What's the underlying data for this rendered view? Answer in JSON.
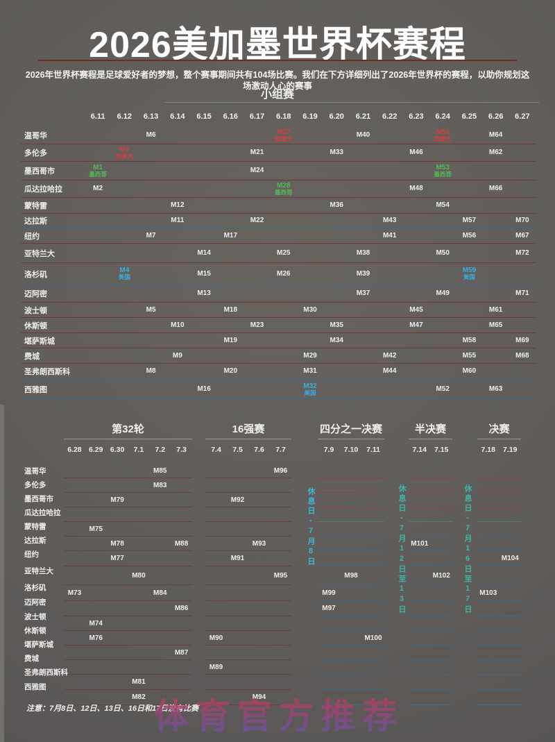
{
  "page": {
    "title": "2026美加墨世界杯赛程",
    "subtitle": "2026年世界杯赛程是足球爱好者的梦想，整个赛事期间共有104场比赛。我们在下方详细列出了2026年世界杯的赛程，以助你规划这场激动人心的赛事",
    "note": "注意：7月8日、12日、13日、16日和17日没有比赛",
    "watermark": "体育官方推荐"
  },
  "colors": {
    "canada_red": "#d63d3d",
    "mexico_green": "#57b757",
    "usa_cyan": "#3aaedd",
    "rest_day_cyan": "#3cb9d9",
    "rest_day_teal": "#3db5a8",
    "row_line_maroon": "#6f3832",
    "row_line_blue": "#41688a",
    "row_line_red": "#8f4340",
    "row_line_green": "#52805a",
    "watermark_red": "#c33b50",
    "watermark_purple": "#6f51a0",
    "title_divider": "#6e2d24"
  },
  "chart_data": {
    "type": "table",
    "title": "2026美加墨世界杯赛程",
    "group_stage": {
      "title": "小组赛",
      "dates": [
        "6.11",
        "6.12",
        "6.13",
        "6.14",
        "6.15",
        "6.16",
        "6.17",
        "6.18",
        "6.19",
        "6.20",
        "6.21",
        "6.22",
        "6.23",
        "6.24",
        "6.25",
        "6.26",
        "6.27"
      ],
      "rows": [
        {
          "city": "温哥华",
          "matches": [
            {
              "d": "6.13",
              "m": "M6"
            },
            {
              "d": "6.18",
              "m": "M27",
              "sub": "加拿大",
              "c": "red"
            },
            {
              "d": "6.21",
              "m": "M40"
            },
            {
              "d": "6.24",
              "m": "M51",
              "sub": "加拿大",
              "c": "red"
            },
            {
              "d": "6.26",
              "m": "M64"
            }
          ]
        },
        {
          "city": "多伦多",
          "matches": [
            {
              "d": "6.12",
              "m": "M3",
              "sub": "加拿大",
              "c": "red"
            },
            {
              "d": "6.17",
              "m": "M21"
            },
            {
              "d": "6.20",
              "m": "M33"
            },
            {
              "d": "6.23",
              "m": "M46"
            },
            {
              "d": "6.26",
              "m": "M62"
            }
          ]
        },
        {
          "city": "墨西哥市",
          "matches": [
            {
              "d": "6.11",
              "m": "M1",
              "sub": "墨西哥",
              "c": "green"
            },
            {
              "d": "6.17",
              "m": "M24"
            },
            {
              "d": "6.24",
              "m": "M53",
              "sub": "墨西哥",
              "c": "green"
            }
          ]
        },
        {
          "city": "瓜达拉哈拉",
          "matches": [
            {
              "d": "6.11",
              "m": "M2"
            },
            {
              "d": "6.18",
              "m": "M28",
              "sub": "墨西哥",
              "c": "green"
            },
            {
              "d": "6.23",
              "m": "M48"
            },
            {
              "d": "6.26",
              "m": "M66"
            }
          ]
        },
        {
          "city": "蒙特雷",
          "matches": [
            {
              "d": "6.14",
              "m": "M12"
            },
            {
              "d": "6.20",
              "m": "M36"
            },
            {
              "d": "6.24",
              "m": "M54"
            }
          ]
        },
        {
          "city": "达拉斯",
          "matches": [
            {
              "d": "6.14",
              "m": "M11"
            },
            {
              "d": "6.17",
              "m": "M22"
            },
            {
              "d": "6.22",
              "m": "M43"
            },
            {
              "d": "6.25",
              "m": "M57"
            },
            {
              "d": "6.27",
              "m": "M70"
            }
          ]
        },
        {
          "city": "纽约",
          "matches": [
            {
              "d": "6.13",
              "m": "M7"
            },
            {
              "d": "6.16",
              "m": "M17"
            },
            {
              "d": "6.22",
              "m": "M41"
            },
            {
              "d": "6.25",
              "m": "M56"
            },
            {
              "d": "6.27",
              "m": "M67"
            }
          ]
        },
        {
          "city": "亚特兰大",
          "matches": [
            {
              "d": "6.15",
              "m": "M14"
            },
            {
              "d": "6.18",
              "m": "M25"
            },
            {
              "d": "6.21",
              "m": "M38"
            },
            {
              "d": "6.24",
              "m": "M50"
            },
            {
              "d": "6.27",
              "m": "M72"
            }
          ]
        },
        {
          "city": "洛杉矶",
          "matches": [
            {
              "d": "6.12",
              "m": "M4",
              "sub": "美国",
              "c": "cyan"
            },
            {
              "d": "6.15",
              "m": "M15"
            },
            {
              "d": "6.18",
              "m": "M26"
            },
            {
              "d": "6.21",
              "m": "M39"
            },
            {
              "d": "6.25",
              "m": "M59",
              "sub": "美国",
              "c": "cyan"
            }
          ]
        },
        {
          "city": "迈阿密",
          "matches": [
            {
              "d": "6.15",
              "m": "M13"
            },
            {
              "d": "6.21",
              "m": "M37"
            },
            {
              "d": "6.24",
              "m": "M49"
            },
            {
              "d": "6.27",
              "m": "M71"
            }
          ]
        },
        {
          "city": "波士顿",
          "matches": [
            {
              "d": "6.13",
              "m": "M5"
            },
            {
              "d": "6.16",
              "m": "M18"
            },
            {
              "d": "6.19",
              "m": "M30"
            },
            {
              "d": "6.23",
              "m": "M45"
            },
            {
              "d": "6.26",
              "m": "M61"
            }
          ]
        },
        {
          "city": "休斯顿",
          "matches": [
            {
              "d": "6.14",
              "m": "M10"
            },
            {
              "d": "6.17",
              "m": "M23"
            },
            {
              "d": "6.20",
              "m": "M35"
            },
            {
              "d": "6.23",
              "m": "M47"
            },
            {
              "d": "6.26",
              "m": "M65"
            }
          ]
        },
        {
          "city": "堪萨斯城",
          "matches": [
            {
              "d": "6.16",
              "m": "M19"
            },
            {
              "d": "6.20",
              "m": "M34"
            },
            {
              "d": "6.25",
              "m": "M58"
            },
            {
              "d": "6.27",
              "m": "M69"
            }
          ]
        },
        {
          "city": "费城",
          "matches": [
            {
              "d": "6.14",
              "m": "M9"
            },
            {
              "d": "6.19",
              "m": "M29"
            },
            {
              "d": "6.22",
              "m": "M42"
            },
            {
              "d": "6.25",
              "m": "M55"
            },
            {
              "d": "6.27",
              "m": "M68"
            }
          ]
        },
        {
          "city": "圣弗朗西斯科",
          "matches": [
            {
              "d": "6.13",
              "m": "M8"
            },
            {
              "d": "6.16",
              "m": "M20"
            },
            {
              "d": "6.19",
              "m": "M31"
            },
            {
              "d": "6.22",
              "m": "M44"
            },
            {
              "d": "6.25",
              "m": "M60"
            }
          ]
        },
        {
          "city": "西雅图",
          "matches": [
            {
              "d": "6.15",
              "m": "M16"
            },
            {
              "d": "6.19",
              "m": "M32",
              "sub": "美国",
              "c": "cyan"
            },
            {
              "d": "6.24",
              "m": "M52"
            },
            {
              "d": "6.26",
              "m": "M63"
            }
          ]
        }
      ]
    },
    "knockout": {
      "sections": [
        {
          "title": "第32轮",
          "dates": [
            "6.28",
            "6.29",
            "6.30",
            "7.1",
            "7.2",
            "7.3"
          ]
        },
        {
          "title": "16强赛",
          "dates": [
            "7.4",
            "7.5",
            "7.6",
            "7.7"
          ]
        },
        {
          "title": "四分之一决赛",
          "dates": [
            "7.9",
            "7.10",
            "7.11"
          ]
        },
        {
          "title": "半决赛",
          "dates": [
            "7.14",
            "7.15"
          ]
        },
        {
          "title": "决赛",
          "dates": [
            "7.18",
            "7.19"
          ]
        }
      ],
      "rows": [
        {
          "city": "温哥华",
          "matches": [
            {
              "s": 0,
              "d": "7.2",
              "m": "M85"
            },
            {
              "s": 1,
              "d": "7.7",
              "m": "M96"
            }
          ]
        },
        {
          "city": "多伦多",
          "matches": [
            {
              "s": 0,
              "d": "7.2",
              "m": "M83"
            }
          ]
        },
        {
          "city": "墨西哥市",
          "matches": [
            {
              "s": 0,
              "d": "6.30",
              "m": "M79"
            },
            {
              "s": 1,
              "d": "7.5",
              "m": "M92"
            }
          ]
        },
        {
          "city": "瓜达拉哈拉",
          "matches": []
        },
        {
          "city": "蒙特雷",
          "matches": [
            {
              "s": 0,
              "d": "6.29",
              "m": "M75"
            }
          ]
        },
        {
          "city": "达拉斯",
          "matches": [
            {
              "s": 0,
              "d": "6.30",
              "m": "M78"
            },
            {
              "s": 0,
              "d": "7.3",
              "m": "M88"
            },
            {
              "s": 1,
              "d": "7.6",
              "m": "M93"
            },
            {
              "s": 3,
              "d": "7.14",
              "m": "M101"
            }
          ]
        },
        {
          "city": "纽约",
          "matches": [
            {
              "s": 0,
              "d": "6.30",
              "m": "M77"
            },
            {
              "s": 1,
              "d": "7.5",
              "m": "M91"
            },
            {
              "s": 4,
              "d": "7.19",
              "m": "M104"
            }
          ]
        },
        {
          "city": "亚特兰大",
          "matches": [
            {
              "s": 0,
              "d": "7.1",
              "m": "M80"
            },
            {
              "s": 1,
              "d": "7.7",
              "m": "M95"
            },
            {
              "s": 2,
              "d": "7.10",
              "m": "M98"
            },
            {
              "s": 3,
              "d": "7.15",
              "m": "M102"
            }
          ]
        },
        {
          "city": "洛杉矶",
          "matches": [
            {
              "s": 0,
              "d": "6.28",
              "m": "M73"
            },
            {
              "s": 0,
              "d": "7.2",
              "m": "M84"
            },
            {
              "s": 2,
              "d": "7.9",
              "m": "M99"
            },
            {
              "s": 4,
              "d": "7.18",
              "m": "M103"
            }
          ]
        },
        {
          "city": "迈阿密",
          "matches": [
            {
              "s": 0,
              "d": "7.3",
              "m": "M86"
            },
            {
              "s": 2,
              "d": "7.9",
              "m": "M97"
            }
          ]
        },
        {
          "city": "波士顿",
          "matches": [
            {
              "s": 0,
              "d": "6.29",
              "m": "M74"
            }
          ]
        },
        {
          "city": "休斯顿",
          "matches": [
            {
              "s": 0,
              "d": "6.29",
              "m": "M76"
            },
            {
              "s": 1,
              "d": "7.4",
              "m": "M90"
            },
            {
              "s": 2,
              "d": "7.11",
              "m": "M100"
            }
          ]
        },
        {
          "city": "堪萨斯城",
          "matches": [
            {
              "s": 0,
              "d": "7.3",
              "m": "M87"
            }
          ]
        },
        {
          "city": "费城",
          "matches": [
            {
              "s": 1,
              "d": "7.4",
              "m": "M89"
            }
          ]
        },
        {
          "city": "圣弗朗西斯科",
          "matches": [
            {
              "s": 0,
              "d": "7.1",
              "m": "M81"
            }
          ]
        },
        {
          "city": "西雅图",
          "matches": [
            {
              "s": 0,
              "d": "7.1",
              "m": "M82"
            },
            {
              "s": 1,
              "d": "7.6",
              "m": "M94"
            }
          ]
        }
      ]
    },
    "rest_days": [
      "休息日-7月8日",
      "休息日-7月12日至13日",
      "休息日-7月16日至17日"
    ]
  }
}
